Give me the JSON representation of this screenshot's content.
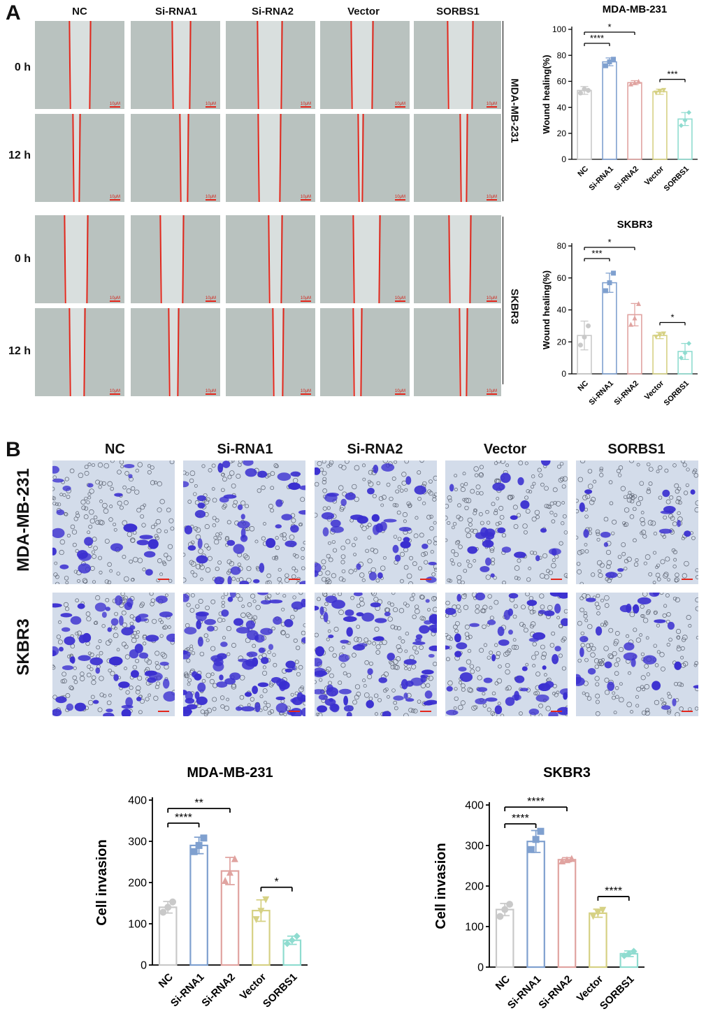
{
  "panel_a": {
    "letter": "A",
    "columns": [
      "NC",
      "Si-RNA1",
      "Si-RNA2",
      "Vector",
      "SORBS1"
    ],
    "rows": [
      "0 h",
      "12 h",
      "0 h",
      "12 h"
    ],
    "groups": [
      "MDA-MB-231",
      "SKBR3"
    ],
    "scale_bar_label": "10μM"
  },
  "panel_b": {
    "letter": "B",
    "columns": [
      "NC",
      "Si-RNA1",
      "Si-RNA2",
      "Vector",
      "SORBS1"
    ],
    "rows": [
      "MDA-MB-231",
      "SKBR3"
    ]
  },
  "colors": {
    "NC": "#c9c9c9",
    "Si-RNA1": "#7fa0cf",
    "Si-RNA2": "#e0a3a0",
    "Vector": "#d6d184",
    "SORBS1": "#8fdcd0",
    "wound_edge": "#e3271c",
    "stain": "#3a2fd0"
  },
  "chart_data": [
    {
      "type": "bar",
      "title": "MDA-MB-231",
      "categories": [
        "NC",
        "Si-RNA1",
        "Si-RNA2",
        "Vector",
        "SORBS1"
      ],
      "values": [
        53,
        75,
        59,
        52,
        31
      ],
      "errors": [
        3,
        3,
        1.5,
        2,
        5
      ],
      "points": [
        [
          51,
          54,
          53
        ],
        [
          72,
          75,
          77
        ],
        [
          58,
          59,
          60
        ],
        [
          51,
          52,
          53
        ],
        [
          26,
          30,
          36
        ]
      ],
      "ylabel": "Wound healing(%)",
      "ylim": [
        0,
        100
      ],
      "yticks": [
        0,
        20,
        40,
        60,
        80,
        100
      ],
      "significance": [
        {
          "from": 0,
          "to": 1,
          "label": "****",
          "level": 1
        },
        {
          "from": 0,
          "to": 2,
          "label": "*",
          "level": 2
        },
        {
          "from": 3,
          "to": 4,
          "label": "***",
          "level": 1
        }
      ]
    },
    {
      "type": "bar",
      "title": "SKBR3",
      "categories": [
        "NC",
        "Si-RNA1",
        "Si-RNA2",
        "Vector",
        "SORBS1"
      ],
      "values": [
        24,
        57,
        37,
        24,
        14
      ],
      "errors": [
        9,
        6,
        7,
        2,
        5
      ],
      "points": [
        [
          18,
          23,
          30
        ],
        [
          52,
          57,
          63
        ],
        [
          31,
          35,
          44
        ],
        [
          23,
          24,
          25
        ],
        [
          10,
          13,
          19
        ]
      ],
      "ylabel": "Wound healing(%)",
      "ylim": [
        0,
        80
      ],
      "yticks": [
        0,
        20,
        40,
        60,
        80
      ],
      "significance": [
        {
          "from": 0,
          "to": 1,
          "label": "***",
          "level": 1
        },
        {
          "from": 0,
          "to": 2,
          "label": "*",
          "level": 2
        },
        {
          "from": 3,
          "to": 4,
          "label": "*",
          "level": 1
        }
      ]
    },
    {
      "type": "bar",
      "title": "MDA-MB-231",
      "categories": [
        "NC",
        "Si-RNA1",
        "Si-RNA2",
        "Vector",
        "SORBS1"
      ],
      "values": [
        140,
        290,
        228,
        132,
        60
      ],
      "errors": [
        14,
        20,
        33,
        26,
        10
      ],
      "points": [
        [
          128,
          140,
          153
        ],
        [
          275,
          290,
          308
        ],
        [
          205,
          225,
          258
        ],
        [
          110,
          130,
          158
        ],
        [
          52,
          60,
          70
        ]
      ],
      "ylabel": "Cell invasion",
      "ylim": [
        0,
        400
      ],
      "yticks": [
        0,
        100,
        200,
        300,
        400
      ],
      "significance": [
        {
          "from": 0,
          "to": 1,
          "label": "****",
          "level": 1
        },
        {
          "from": 0,
          "to": 2,
          "label": "**",
          "level": 2
        },
        {
          "from": 3,
          "to": 4,
          "label": "*",
          "level": 1
        }
      ]
    },
    {
      "type": "bar",
      "title": "SKBR3",
      "categories": [
        "NC",
        "Si-RNA1",
        "Si-RNA2",
        "Vector",
        "SORBS1"
      ],
      "values": [
        142,
        310,
        265,
        133,
        33
      ],
      "errors": [
        15,
        27,
        5,
        10,
        7
      ],
      "points": [
        [
          125,
          142,
          155
        ],
        [
          290,
          315,
          335
        ],
        [
          262,
          265,
          268
        ],
        [
          125,
          133,
          140
        ],
        [
          28,
          33,
          39
        ]
      ],
      "ylabel": "Cell invasion",
      "ylim": [
        0,
        400
      ],
      "yticks": [
        0,
        100,
        200,
        300,
        400
      ],
      "significance": [
        {
          "from": 0,
          "to": 1,
          "label": "****",
          "level": 1
        },
        {
          "from": 0,
          "to": 2,
          "label": "****",
          "level": 2
        },
        {
          "from": 3,
          "to": 4,
          "label": "****",
          "level": 1
        }
      ]
    }
  ]
}
